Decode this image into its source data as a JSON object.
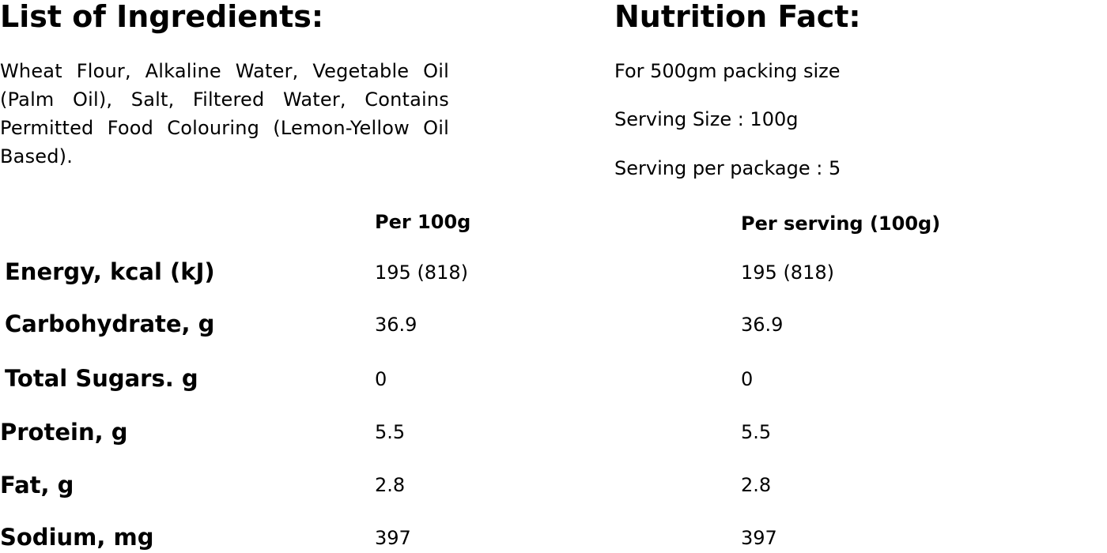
{
  "ingredients": {
    "heading": "List of Ingredients:",
    "text": "Wheat Flour, Alkaline Water, Vegetable Oil (Palm Oil), Salt, Filtered Water, Contains Permitted Food Colouring (Lemon-Yellow Oil Based)."
  },
  "nutrition": {
    "heading": "Nutrition Fact:",
    "packing": "For 500gm packing size",
    "serving_size": "Serving Size : 100g",
    "servings_per_package": "Serving per package : 5"
  },
  "table": {
    "columns": [
      "Per 100g",
      "Per serving (100g)"
    ],
    "rows": [
      {
        "label": "Energy, kcal (kJ)",
        "per100": "195 (818)",
        "serving": "195 (818)"
      },
      {
        "label": "Carbohydrate, g",
        "per100": "36.9",
        "serving": "36.9"
      },
      {
        "label": "Total Sugars. g",
        "per100": "0",
        "serving": "0"
      },
      {
        "label": "Protein, g",
        "per100": "5.5",
        "serving": "5.5"
      },
      {
        "label": "Fat, g",
        "per100": "2.8",
        "serving": "2.8"
      },
      {
        "label": "Sodium, mg",
        "per100": "397",
        "serving": "397"
      }
    ]
  }
}
